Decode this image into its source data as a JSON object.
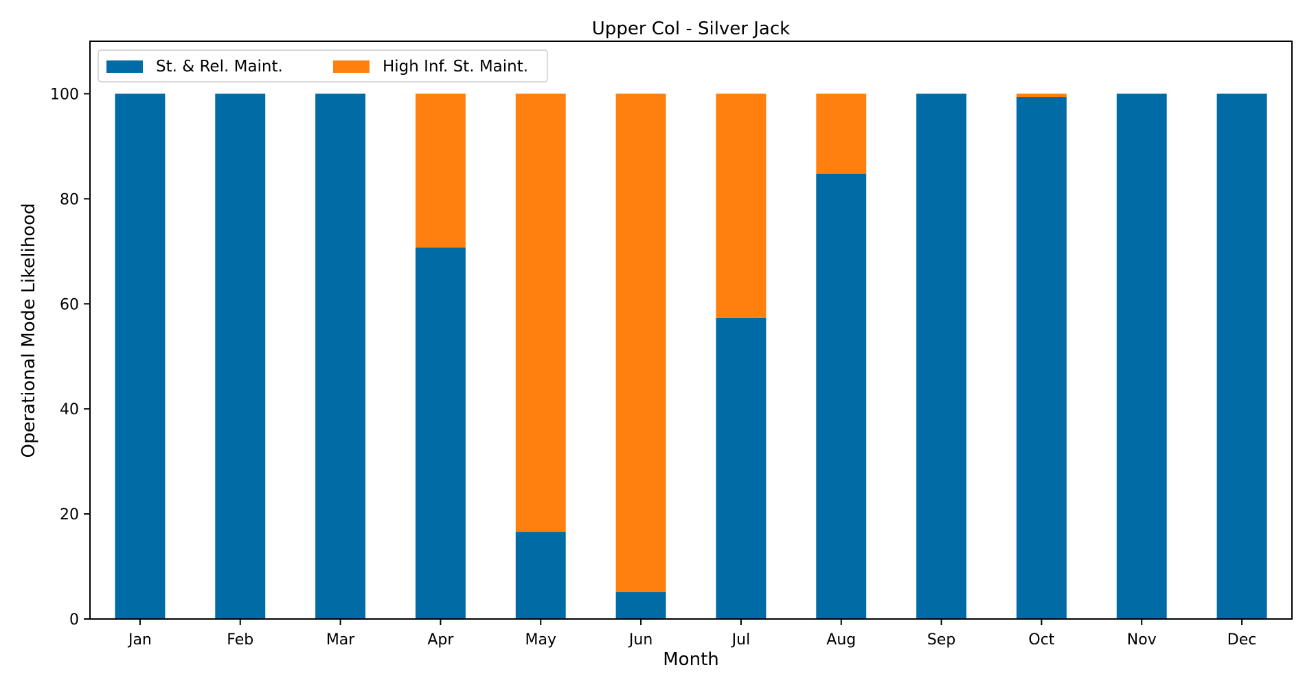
{
  "chart_data": {
    "type": "bar",
    "stacked": true,
    "title": "Upper Col - Silver Jack",
    "xlabel": "Month",
    "ylabel": "Operational Mode Likelihood",
    "categories": [
      "Jan",
      "Feb",
      "Mar",
      "Apr",
      "May",
      "Jun",
      "Jul",
      "Aug",
      "Sep",
      "Oct",
      "Nov",
      "Dec"
    ],
    "ylim": [
      0,
      110
    ],
    "yticks": [
      "0",
      "20",
      "40",
      "60",
      "80",
      "100"
    ],
    "grid": false,
    "legend_position": "top-left",
    "series": [
      {
        "name": "St. & Rel. Maint.",
        "color": "#006ba4",
        "values": [
          100,
          100,
          100,
          70.7,
          16.6,
          5.1,
          57.3,
          84.8,
          100,
          99.4,
          100,
          100
        ]
      },
      {
        "name": "High Inf. St. Maint.",
        "color": "#ff800e",
        "values": [
          0,
          0,
          0,
          29.3,
          83.4,
          94.9,
          42.7,
          15.2,
          0,
          0.6,
          0,
          0
        ]
      }
    ]
  }
}
